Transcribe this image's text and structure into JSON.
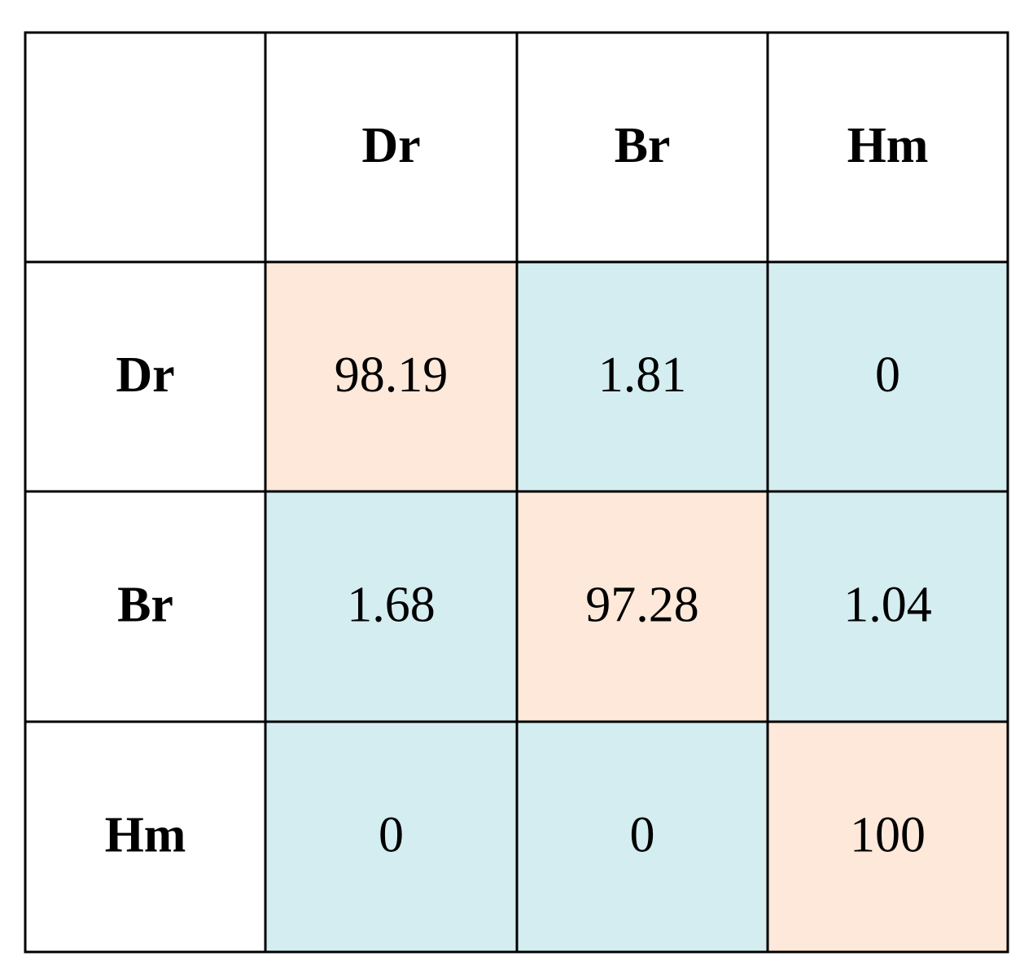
{
  "table": {
    "columns": [
      "Dr",
      "Br",
      "Hm"
    ],
    "rows": [
      {
        "label": "Dr",
        "values": [
          98.19,
          1.81,
          0
        ]
      },
      {
        "label": "Br",
        "values": [
          1.68,
          97.28,
          1.04
        ]
      },
      {
        "label": "Hm",
        "values": [
          0,
          0,
          100
        ]
      }
    ]
  }
}
